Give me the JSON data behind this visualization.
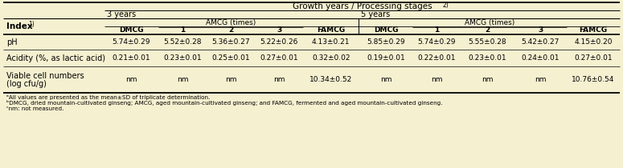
{
  "bg_color": "#F5F0D0",
  "columns": [
    "DMCG",
    "1",
    "2",
    "3",
    "FAMCG",
    "DMCG",
    "1",
    "2",
    "3",
    "FAMCG"
  ],
  "row_labels": [
    "pH",
    "Acidity (%, as lactic acid)",
    "Viable cell numbers\n(log cfu/g)"
  ],
  "data": [
    [
      "5.74±0.29",
      "5.52±0.28",
      "5.36±0.27",
      "5.22±0.26",
      "4.13±0.21",
      "5.85±0.29",
      "5.74±0.29",
      "5.55±0.28",
      "5.42±0.27",
      "4.15±0.20"
    ],
    [
      "0.21±0.01",
      "0.23±0.01",
      "0.25±0.01",
      "0.27±0.01",
      "0.32±0.02",
      "0.19±0.01",
      "0.22±0.01",
      "0.23±0.01",
      "0.24±0.01",
      "0.27±0.01"
    ],
    [
      "nm",
      "nm",
      "nm",
      "nm",
      "10.34±0.52",
      "nm",
      "nm",
      "nm",
      "nm",
      "10.76±0.54"
    ]
  ],
  "footnotes": [
    "ᵃAll values are presented as the mean±SD of triplicate determination.",
    "ᵇDMCG, dried mountain-cultivated ginseng; AMCG, aged mountain-cultivated ginseng; and FAMCG, fermented and aged mountain-cultivated ginseng.",
    "ᶜnm: not measured."
  ],
  "index_label": "Index",
  "index_sup": "1)",
  "growth_title": "Growth years / Processing stages",
  "growth_sup": "2)",
  "three_years": "3 years",
  "five_years": "5 years",
  "amcg_label": "AMCG (times)"
}
